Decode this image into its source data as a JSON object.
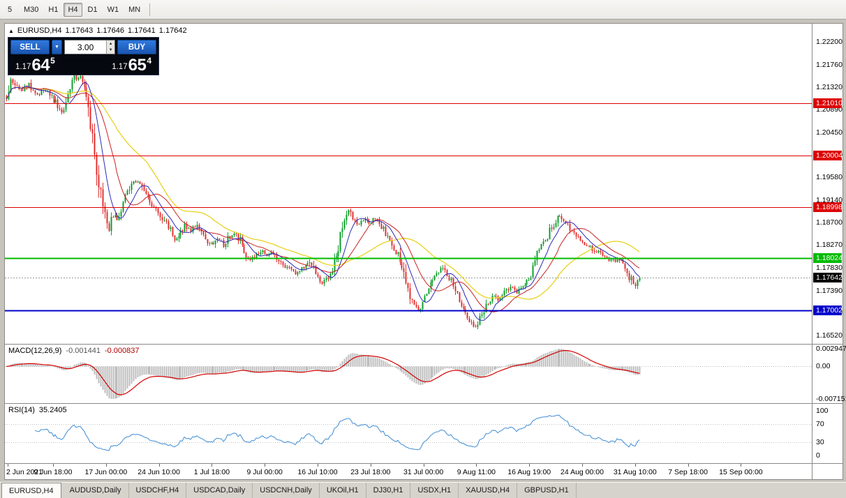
{
  "toolbar": {
    "timeframes": [
      {
        "label": "5",
        "active": false
      },
      {
        "label": "M30",
        "active": false
      },
      {
        "label": "H1",
        "active": false
      },
      {
        "label": "H4",
        "active": true
      },
      {
        "label": "D1",
        "active": false
      },
      {
        "label": "W1",
        "active": false
      },
      {
        "label": "MN",
        "active": false
      }
    ]
  },
  "title_bar": {
    "collapse_icon": "▲",
    "symbol": "EURUSD,H4",
    "open": "1.17643",
    "high": "1.17646",
    "low": "1.17641",
    "close": "1.17642"
  },
  "trade_panel": {
    "sell_label": "SELL",
    "buy_label": "BUY",
    "volume": "3.00",
    "dropdown_icon": "▼",
    "spin_up_icon": "▲",
    "spin_down_icon": "▼",
    "sell_price": {
      "prefix": "1.17",
      "big": "64",
      "sup": "5"
    },
    "buy_price": {
      "prefix": "1.17",
      "big": "65",
      "sup": "4"
    }
  },
  "chart_data": {
    "type": "candlestick",
    "symbol": "EURUSD",
    "period": "H4",
    "current_price": {
      "value": 1.17642,
      "label": "1.17642",
      "badge_color": "#000000"
    },
    "y_axis_ticks": [
      "1.22200",
      "1.21760",
      "1.21320",
      "1.20890",
      "1.20450",
      "1.20010",
      "1.19580",
      "1.19140",
      "1.18700",
      "1.18270",
      "1.17830",
      "1.17390",
      "1.16960",
      "1.16520"
    ],
    "x_axis_labels": [
      "2 Jun 2021",
      "9 Jun 18:00",
      "17 Jun 00:00",
      "24 Jun 10:00",
      "1 Jul 18:00",
      "9 Jul 00:00",
      "16 Jul 10:00",
      "23 Jul 18:00",
      "31 Jul 00:00",
      "9 Aug 11:00",
      "16 Aug 19:00",
      "24 Aug 00:00",
      "31 Aug 10:00",
      "7 Sep 18:00",
      "15 Sep 00:00"
    ],
    "horizontal_levels": [
      {
        "price": 1.2101,
        "label": "1.21010",
        "color": "#dd0000",
        "width": 1
      },
      {
        "price": 1.20004,
        "label": "1.20004",
        "color": "#dd0000",
        "width": 1
      },
      {
        "price": 1.18998,
        "label": "1.18998",
        "color": "#dd0000",
        "width": 1
      },
      {
        "price": 1.18024,
        "label": "1.18024",
        "color": "#00bb00",
        "width": 2
      },
      {
        "price": 1.17002,
        "label": "1.17002",
        "color": "#0000cc",
        "width": 2
      }
    ],
    "candle_up_color": "#0f9d2e",
    "candle_down_color": "#e03131",
    "ma_colors": {
      "fast": "#2a2ab8",
      "mid": "#cc2020",
      "slow": "#e8d223"
    },
    "price_path_keyframes": [
      [
        0,
        1.2111
      ],
      [
        0.007,
        1.2143
      ],
      [
        0.021,
        1.2124
      ],
      [
        0.035,
        1.2138
      ],
      [
        0.048,
        1.2118
      ],
      [
        0.062,
        1.2128
      ],
      [
        0.076,
        1.2105
      ],
      [
        0.087,
        1.2085
      ],
      [
        0.096,
        1.2118
      ],
      [
        0.106,
        1.2149
      ],
      [
        0.117,
        1.2155
      ],
      [
        0.123,
        1.2141
      ],
      [
        0.13,
        1.2097
      ],
      [
        0.136,
        1.203
      ],
      [
        0.143,
        1.1969
      ],
      [
        0.15,
        1.1915
      ],
      [
        0.156,
        1.1881
      ],
      [
        0.162,
        1.1854
      ],
      [
        0.167,
        1.1888
      ],
      [
        0.175,
        1.1874
      ],
      [
        0.183,
        1.1901
      ],
      [
        0.191,
        1.1928
      ],
      [
        0.2,
        1.1946
      ],
      [
        0.21,
        1.1951
      ],
      [
        0.217,
        1.1935
      ],
      [
        0.224,
        1.1919
      ],
      [
        0.233,
        1.1901
      ],
      [
        0.242,
        1.1888
      ],
      [
        0.251,
        1.187
      ],
      [
        0.26,
        1.1854
      ],
      [
        0.266,
        1.1838
      ],
      [
        0.274,
        1.1847
      ],
      [
        0.282,
        1.1865
      ],
      [
        0.29,
        1.1854
      ],
      [
        0.299,
        1.1865
      ],
      [
        0.308,
        1.1847
      ],
      [
        0.317,
        1.1833
      ],
      [
        0.326,
        1.1824
      ],
      [
        0.334,
        1.184
      ],
      [
        0.343,
        1.1827
      ],
      [
        0.352,
        1.1843
      ],
      [
        0.361,
        1.185
      ],
      [
        0.37,
        1.1833
      ],
      [
        0.378,
        1.181
      ],
      [
        0.387,
        1.1799
      ],
      [
        0.396,
        1.181
      ],
      [
        0.405,
        1.1817
      ],
      [
        0.414,
        1.1806
      ],
      [
        0.422,
        1.1813
      ],
      [
        0.431,
        1.1799
      ],
      [
        0.44,
        1.1788
      ],
      [
        0.449,
        1.1779
      ],
      [
        0.458,
        1.1769
      ],
      [
        0.466,
        1.1783
      ],
      [
        0.475,
        1.1796
      ],
      [
        0.484,
        1.1785
      ],
      [
        0.493,
        1.1761
      ],
      [
        0.499,
        1.1752
      ],
      [
        0.508,
        1.1765
      ],
      [
        0.517,
        1.1785
      ],
      [
        0.526,
        1.1833
      ],
      [
        0.535,
        1.1881
      ],
      [
        0.541,
        1.1895
      ],
      [
        0.548,
        1.1874
      ],
      [
        0.557,
        1.1868
      ],
      [
        0.565,
        1.1879
      ],
      [
        0.574,
        1.187
      ],
      [
        0.583,
        1.1879
      ],
      [
        0.592,
        1.1865
      ],
      [
        0.601,
        1.1843
      ],
      [
        0.609,
        1.1827
      ],
      [
        0.618,
        1.1806
      ],
      [
        0.627,
        1.1785
      ],
      [
        0.634,
        1.1738
      ],
      [
        0.642,
        1.1711
      ],
      [
        0.651,
        1.1704
      ],
      [
        0.66,
        1.1724
      ],
      [
        0.669,
        1.1752
      ],
      [
        0.678,
        1.1772
      ],
      [
        0.686,
        1.1783
      ],
      [
        0.695,
        1.1769
      ],
      [
        0.704,
        1.1752
      ],
      [
        0.713,
        1.1731
      ],
      [
        0.722,
        1.1704
      ],
      [
        0.73,
        1.1684
      ],
      [
        0.739,
        1.167
      ],
      [
        0.746,
        1.1677
      ],
      [
        0.752,
        1.1697
      ],
      [
        0.761,
        1.1717
      ],
      [
        0.77,
        1.1731
      ],
      [
        0.779,
        1.172
      ],
      [
        0.788,
        1.1738
      ],
      [
        0.796,
        1.1745
      ],
      [
        0.805,
        1.1734
      ],
      [
        0.814,
        1.1747
      ],
      [
        0.823,
        1.1758
      ],
      [
        0.832,
        1.1779
      ],
      [
        0.84,
        1.1813
      ],
      [
        0.849,
        1.1833
      ],
      [
        0.858,
        1.1854
      ],
      [
        0.867,
        1.187
      ],
      [
        0.873,
        1.1884
      ],
      [
        0.88,
        1.1874
      ],
      [
        0.887,
        1.1868
      ],
      [
        0.893,
        1.1854
      ],
      [
        0.902,
        1.184
      ],
      [
        0.911,
        1.1833
      ],
      [
        0.92,
        1.1824
      ],
      [
        0.928,
        1.1816
      ],
      [
        0.937,
        1.181
      ],
      [
        0.946,
        1.1802
      ],
      [
        0.955,
        1.1796
      ],
      [
        0.964,
        1.1799
      ],
      [
        0.973,
        1.1793
      ],
      [
        0.981,
        1.1779
      ],
      [
        0.99,
        1.1747
      ],
      [
        1,
        1.17642
      ]
    ],
    "indicators": {
      "macd": {
        "name": "MACD(12,26,9)",
        "value_main": "-0.001441",
        "value_signal": "-0.000837",
        "scale_labels": [
          "0.002947",
          "0.00",
          "-0.007151"
        ],
        "histogram_color": "#bdbdbd",
        "signal_color": "#d40000"
      },
      "rsi": {
        "name": "RSI(14)",
        "value": "35.2405",
        "levels": [
          "100",
          "70",
          "30",
          "0"
        ],
        "line_color": "#3d8bd4"
      }
    }
  },
  "tabs": [
    {
      "label": "EURUSD,H4",
      "active": true
    },
    {
      "label": "AUDUSD,Daily",
      "active": false
    },
    {
      "label": "USDCHF,H4",
      "active": false
    },
    {
      "label": "USDCAD,Daily",
      "active": false
    },
    {
      "label": "USDCNH,Daily",
      "active": false
    },
    {
      "label": "UKOil,H1",
      "active": false
    },
    {
      "label": "DJ30,H1",
      "active": false
    },
    {
      "label": "USDX,H1",
      "active": false
    },
    {
      "label": "XAUUSD,H4",
      "active": false
    },
    {
      "label": "GBPUSD,H1",
      "active": false
    }
  ]
}
